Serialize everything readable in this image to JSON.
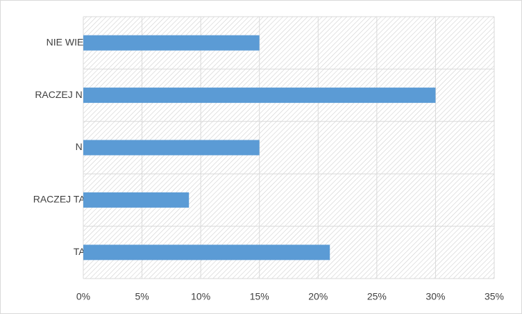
{
  "chart_data": {
    "type": "bar",
    "orientation": "horizontal",
    "categories": [
      "NIE WIEM",
      "RACZEJ NIE",
      "NIE",
      "RACZEJ TAK",
      "TAK"
    ],
    "values": [
      15,
      30,
      15,
      9,
      21
    ],
    "color": "#5b9bd5",
    "xlim": [
      0,
      35
    ],
    "xticks": [
      {
        "value": 0,
        "label": "0%"
      },
      {
        "value": 5,
        "label": "5%"
      },
      {
        "value": 10,
        "label": "10%"
      },
      {
        "value": 15,
        "label": "15%"
      },
      {
        "value": 20,
        "label": "20%"
      },
      {
        "value": 25,
        "label": "25%"
      },
      {
        "value": 30,
        "label": "30%"
      },
      {
        "value": 35,
        "label": "35%"
      }
    ],
    "grid": true
  }
}
